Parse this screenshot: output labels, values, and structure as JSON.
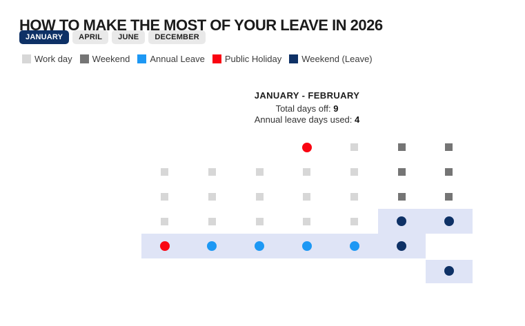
{
  "header": {
    "title": "HOW TO MAKE THE MOST OF YOUR LEAVE IN 2026"
  },
  "tabs": [
    {
      "label": "JANUARY",
      "selected": true
    },
    {
      "label": "APRIL",
      "selected": false
    },
    {
      "label": "JUNE",
      "selected": false
    },
    {
      "label": "DECEMBER",
      "selected": false
    }
  ],
  "legend": [
    {
      "label": "Work day",
      "color": "#d7d7d7"
    },
    {
      "label": "Weekend",
      "color": "#757575"
    },
    {
      "label": "Annual Leave",
      "color": "#1d98f4"
    },
    {
      "label": "Public Holiday",
      "color": "#f90411"
    },
    {
      "label": "Weekend (Leave)",
      "color": "#0e3166"
    }
  ],
  "subtitle": {
    "range": "JANUARY - FEBRUARY",
    "total_label": "Total days off:",
    "total_value": "9",
    "leave_label": "Annual leave days used:",
    "leave_value": "4"
  },
  "colors": {
    "work": "#d7d7d7",
    "weekend": "#757575",
    "annual_leave": "#1d98f4",
    "public_holiday": "#f90411",
    "weekend_leave": "#0e3166",
    "band": "#dfe4f6",
    "tab_bg": "#e9e9e9",
    "title": "#1b1b1b"
  },
  "chart_data": {
    "type": "heatmap",
    "title": "JANUARY - FEBRUARY",
    "stats": {
      "total_days_off": 9,
      "annual_leave_days_used": 4
    },
    "columns": 7,
    "legend_states": [
      "work",
      "weekend",
      "annual_leave",
      "public_holiday",
      "weekend_leave"
    ],
    "rows": [
      [
        "",
        "",
        "",
        "public_holiday",
        "work",
        "weekend",
        "weekend"
      ],
      [
        "work",
        "work",
        "work",
        "work",
        "work",
        "weekend",
        "weekend"
      ],
      [
        "work",
        "work",
        "work",
        "work",
        "work",
        "weekend",
        "weekend"
      ],
      [
        "work",
        "work",
        "work",
        "work",
        "work",
        "weekend_leave",
        "weekend_leave"
      ],
      [
        "public_holiday",
        "annual_leave",
        "annual_leave",
        "annual_leave",
        "annual_leave",
        "weekend_leave",
        ""
      ],
      [
        "",
        "",
        "",
        "",
        "",
        "",
        "weekend_leave"
      ]
    ],
    "highlight_bands": [
      {
        "row": 3,
        "col_start": 5,
        "col_end": 6
      },
      {
        "row": 4,
        "col_start": 0,
        "col_end": 5
      },
      {
        "row": 5,
        "col_start": 6,
        "col_end": 6,
        "gap_top": true
      }
    ]
  }
}
